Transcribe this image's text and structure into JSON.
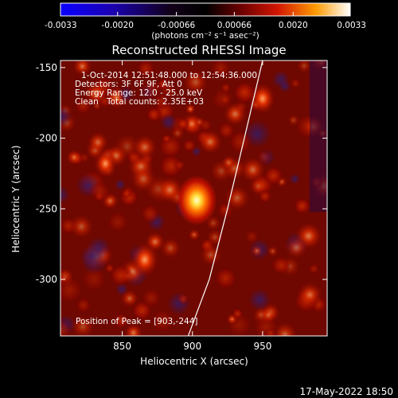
{
  "chart_data": {
    "type": "heatmap",
    "title": "Reconstructed RHESSI Image",
    "xlabel": "Heliocentric X (arcsec)",
    "ylabel": "Heliocentric Y (arcsec)",
    "xlim": [
      806,
      996
    ],
    "ylim": [
      -340,
      -145
    ],
    "x_ticks": [
      "850",
      "900",
      "950"
    ],
    "y_ticks": [
      "-150",
      "-200",
      "-250",
      "-300"
    ],
    "colorbar": {
      "ticks": [
        "-0.0033",
        "-0.0020",
        "-0.00066",
        "0.00066",
        "0.0020",
        "0.0033"
      ],
      "range": [
        -0.0033,
        0.0033
      ],
      "units": "(photons cm⁻² s⁻¹ asec⁻²)"
    },
    "annotations": {
      "time_range": "1-Oct-2014 12:51:48.000 to 12:54:36.000",
      "detectors": "Detectors: 3F 6F 9F, Att 0",
      "energy_range": "Energy Range: 12.0 - 25.0 keV",
      "clean": "Clean",
      "total_counts": "Total counts: 2.35E+03",
      "peak_position": "Position of Peak = [903,-244]"
    },
    "sources": [
      {
        "x": 903,
        "y": -244,
        "relative_intensity": 1.0
      },
      {
        "x": 866,
        "y": -286,
        "relative_intensity": 0.55
      },
      {
        "x": 950,
        "y": -172,
        "relative_intensity": 0.45
      },
      {
        "x": 838,
        "y": -218,
        "relative_intensity": 0.35
      }
    ],
    "limb": [
      [
        897,
        -340
      ],
      [
        912,
        -300
      ],
      [
        925,
        -250
      ],
      [
        937,
        -200
      ],
      [
        950,
        -145
      ]
    ],
    "colormap": "blue-black-red-yellow-white",
    "grid": false
  },
  "footer": {
    "date": "17-May-2022 18:50"
  }
}
